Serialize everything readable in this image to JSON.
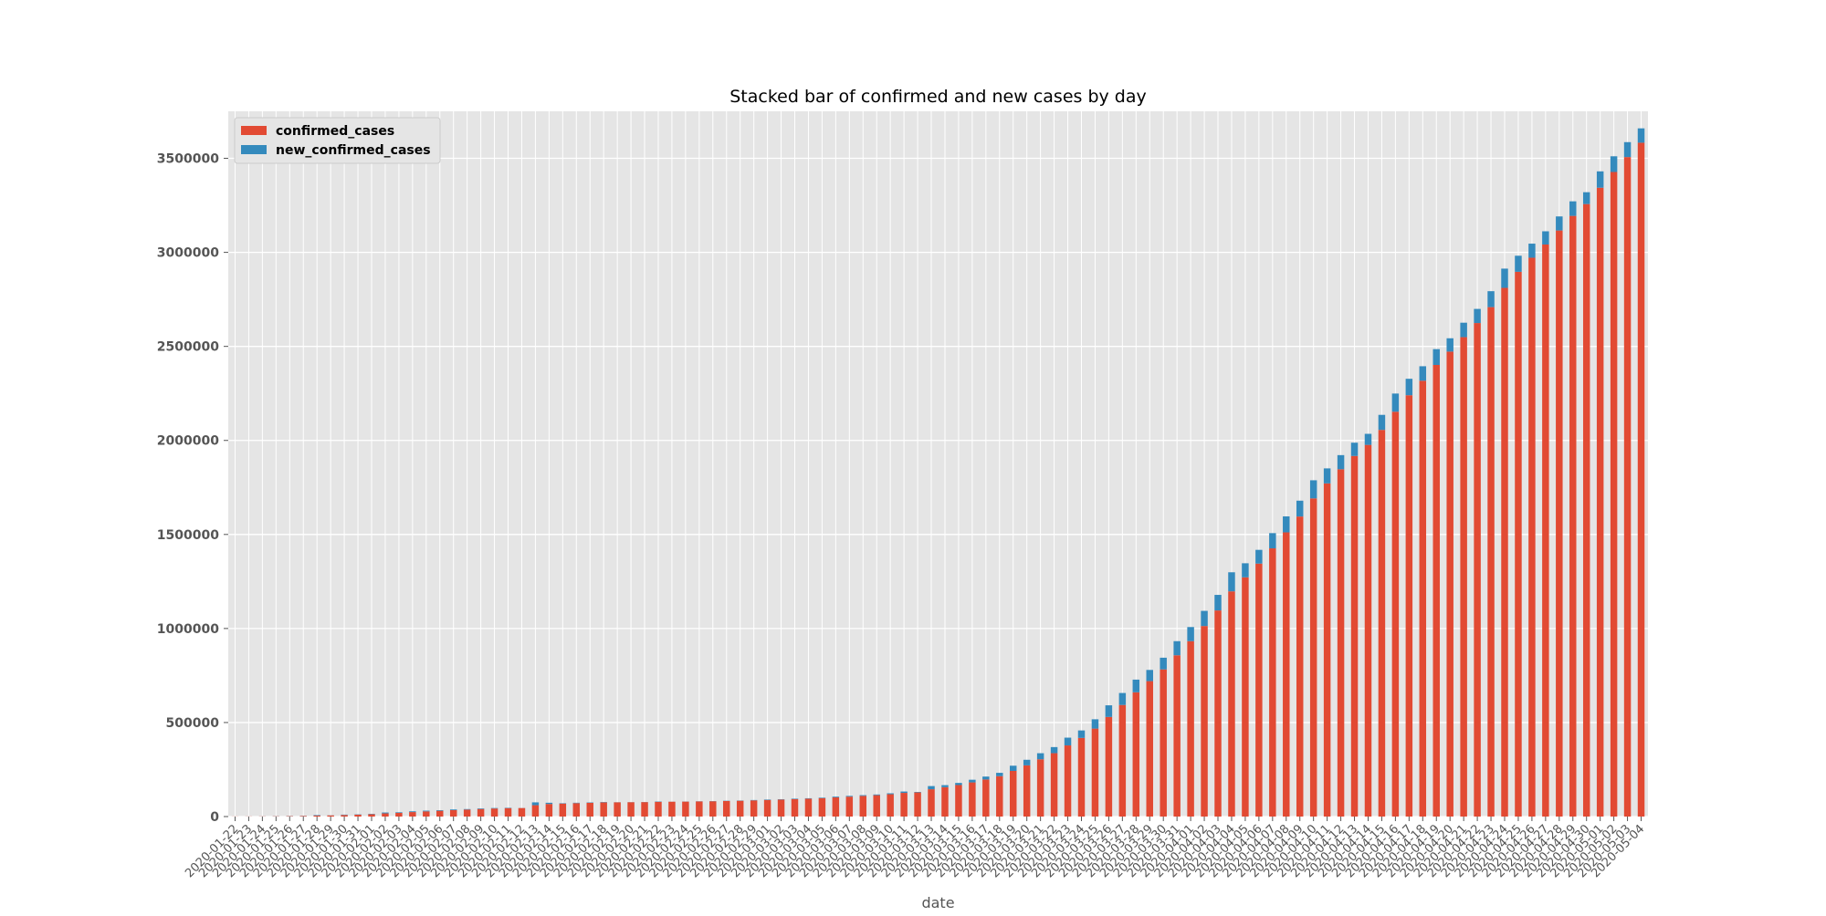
{
  "chart_data": {
    "type": "bar",
    "stacked": true,
    "title": "Stacked bar of confirmed and new cases by day",
    "xlabel": "date",
    "ylabel": "",
    "ylim": [
      0,
      3750000
    ],
    "yticks": [
      0,
      500000,
      1000000,
      1500000,
      2000000,
      2500000,
      3000000,
      3500000
    ],
    "grid": true,
    "legend_position": "top-left",
    "colors": {
      "confirmed_cases": "#E24A33",
      "new_confirmed_cases": "#348ABD",
      "plot_bg": "#E5E5E5",
      "grid": "#FFFFFF",
      "text": "#555555"
    },
    "categories": [
      "2020-01-22",
      "2020-01-23",
      "2020-01-24",
      "2020-01-25",
      "2020-01-26",
      "2020-01-27",
      "2020-01-28",
      "2020-01-29",
      "2020-01-30",
      "2020-01-31",
      "2020-02-01",
      "2020-02-02",
      "2020-02-03",
      "2020-02-04",
      "2020-02-05",
      "2020-02-06",
      "2020-02-07",
      "2020-02-08",
      "2020-02-09",
      "2020-02-10",
      "2020-02-11",
      "2020-02-12",
      "2020-02-13",
      "2020-02-14",
      "2020-02-15",
      "2020-02-16",
      "2020-02-17",
      "2020-02-18",
      "2020-02-19",
      "2020-02-20",
      "2020-02-21",
      "2020-02-22",
      "2020-02-23",
      "2020-02-24",
      "2020-02-25",
      "2020-02-26",
      "2020-02-27",
      "2020-02-28",
      "2020-02-29",
      "2020-03-01",
      "2020-03-02",
      "2020-03-03",
      "2020-03-04",
      "2020-03-05",
      "2020-03-06",
      "2020-03-07",
      "2020-03-08",
      "2020-03-09",
      "2020-03-10",
      "2020-03-11",
      "2020-03-12",
      "2020-03-13",
      "2020-03-14",
      "2020-03-15",
      "2020-03-16",
      "2020-03-17",
      "2020-03-18",
      "2020-03-19",
      "2020-03-20",
      "2020-03-21",
      "2020-03-22",
      "2020-03-23",
      "2020-03-24",
      "2020-03-25",
      "2020-03-26",
      "2020-03-27",
      "2020-03-28",
      "2020-03-29",
      "2020-03-30",
      "2020-03-31",
      "2020-04-01",
      "2020-04-02",
      "2020-04-03",
      "2020-04-04",
      "2020-04-05",
      "2020-04-06",
      "2020-04-07",
      "2020-04-08",
      "2020-04-09",
      "2020-04-10",
      "2020-04-11",
      "2020-04-12",
      "2020-04-13",
      "2020-04-14",
      "2020-04-15",
      "2020-04-16",
      "2020-04-17",
      "2020-04-18",
      "2020-04-19",
      "2020-04-20",
      "2020-04-21",
      "2020-04-22",
      "2020-04-23",
      "2020-04-24",
      "2020-04-25",
      "2020-04-26",
      "2020-04-27",
      "2020-04-28",
      "2020-04-29",
      "2020-04-30",
      "2020-05-01",
      "2020-05-02",
      "2020-05-03",
      "2020-05-04"
    ],
    "series": [
      {
        "name": "confirmed_cases",
        "values": [
          555,
          654,
          941,
          1434,
          2118,
          2927,
          5578,
          6166,
          8234,
          9927,
          12038,
          16787,
          19887,
          23898,
          27643,
          30802,
          34395,
          37129,
          40151,
          42762,
          44802,
          45221,
          60368,
          66885,
          69030,
          71224,
          73258,
          75136,
          75639,
          76197,
          76819,
          78572,
          78958,
          79561,
          80406,
          81388,
          82746,
          84112,
          86011,
          88369,
          90306,
          92840,
          95120,
          97886,
          101801,
          105847,
          109821,
          113590,
          118620,
          125875,
          128352,
          145205,
          156101,
          167454,
          181574,
          197102,
          214821,
          242570,
          272208,
          304507,
          336953,
          378235,
          418045,
          467653,
          529591,
          593291,
          660693,
          720140,
          782389,
          857487,
          932605,
          1013157,
          1095917,
          1197405,
          1272115,
          1345101,
          1426096,
          1511104,
          1595350,
          1691719,
          1771514,
          1846679,
          1917320,
          1976192,
          2056054,
          2152647,
          2240191,
          2317339,
          2401378,
          2472259,
          2549123,
          2624209,
          2708885,
          2811193,
          2896636,
          2971475,
          3041764,
          3116398,
          3193886,
          3256846,
          3343777,
          3427343,
          3506729,
          3583055
        ],
        "color": "#E24A33"
      },
      {
        "name": "new_confirmed_cases",
        "values": [
          0,
          99,
          287,
          493,
          684,
          809,
          2651,
          588,
          2068,
          1693,
          2111,
          4749,
          3100,
          4011,
          3745,
          3159,
          3593,
          2734,
          3022,
          2611,
          2040,
          419,
          15147,
          6517,
          2145,
          2194,
          2034,
          1878,
          503,
          558,
          622,
          1753,
          386,
          603,
          845,
          982,
          1358,
          1366,
          1899,
          2358,
          1937,
          2534,
          2280,
          2766,
          3915,
          4046,
          3974,
          3769,
          5030,
          7255,
          2477,
          16853,
          10896,
          11353,
          14120,
          15528,
          17719,
          27749,
          29638,
          32299,
          32446,
          41282,
          39810,
          49608,
          61938,
          63700,
          67402,
          59447,
          62249,
          75098,
          75118,
          80552,
          82760,
          101488,
          74710,
          72986,
          80995,
          85008,
          84246,
          96369,
          79795,
          75165,
          70641,
          58872,
          79862,
          96593,
          87544,
          77148,
          84039,
          70881,
          76864,
          75086,
          84676,
          102308,
          85443,
          74839,
          70289,
          74634,
          77488,
          62960,
          86931,
          83566,
          79386,
          76326
        ],
        "color": "#348ABD"
      }
    ]
  }
}
